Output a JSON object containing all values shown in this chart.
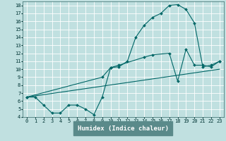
{
  "xlabel": "Humidex (Indice chaleur)",
  "bg_color": "#c0e0e0",
  "plot_bg_color": "#c0e0e0",
  "bottom_bar_color": "#5a8a8a",
  "grid_color": "#ffffff",
  "line_color": "#006666",
  "xlim": [
    -0.5,
    23.5
  ],
  "ylim": [
    4,
    18.5
  ],
  "xticks": [
    0,
    1,
    2,
    3,
    4,
    5,
    6,
    7,
    8,
    9,
    10,
    11,
    12,
    13,
    14,
    15,
    16,
    17,
    18,
    19,
    20,
    21,
    22,
    23
  ],
  "yticks": [
    4,
    5,
    6,
    7,
    8,
    9,
    10,
    11,
    12,
    13,
    14,
    15,
    16,
    17,
    18
  ],
  "line1_x": [
    0,
    1,
    2,
    3,
    4,
    5,
    6,
    7,
    8,
    9,
    10,
    11,
    12,
    13,
    14,
    15,
    16,
    17,
    18,
    19,
    20,
    21,
    22,
    23
  ],
  "line1_y": [
    6.5,
    6.5,
    5.5,
    4.5,
    4.5,
    5.5,
    5.5,
    5.0,
    4.3,
    6.5,
    10.2,
    10.3,
    11.0,
    14.0,
    15.5,
    16.5,
    17.0,
    18.0,
    18.1,
    17.5,
    15.8,
    10.3,
    10.5,
    11.0
  ],
  "line2_x": [
    0,
    9,
    10,
    11,
    14,
    15,
    17,
    18,
    19,
    20,
    21,
    22,
    23
  ],
  "line2_y": [
    6.5,
    9.0,
    10.2,
    10.5,
    11.5,
    11.8,
    12.0,
    8.5,
    12.5,
    10.5,
    10.5,
    10.3,
    11.0
  ],
  "line3_x": [
    0,
    23
  ],
  "line3_y": [
    6.5,
    10.0
  ],
  "xlabel_color": "#ffffff",
  "tick_color": "#003333",
  "tick_fontsize": 5.0,
  "xlabel_fontsize": 6.5
}
